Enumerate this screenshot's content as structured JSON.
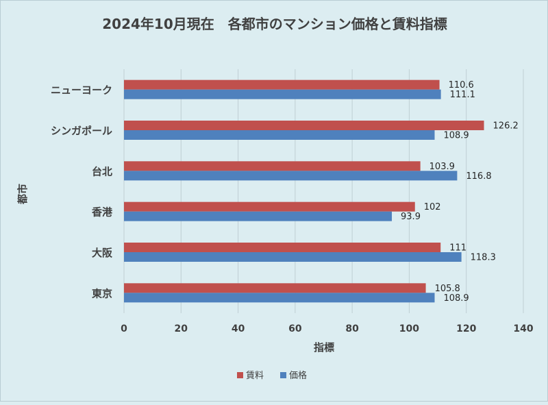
{
  "chart_data": {
    "type": "bar",
    "orientation": "horizontal",
    "title": "2024年10月現在　各都市のマンション価格と賃料指標",
    "xlabel": "指標",
    "ylabel": "都市",
    "xlim": [
      0,
      140
    ],
    "xticks": [
      0,
      20,
      40,
      60,
      80,
      100,
      120,
      140
    ],
    "grid": true,
    "legend_position": "bottom",
    "categories": [
      "ニューヨーク",
      "シンガポール",
      "台北",
      "香港",
      "大阪",
      "東京"
    ],
    "series": [
      {
        "name": "賃料",
        "color": "#c0504d",
        "values": [
          110.6,
          126.2,
          103.9,
          102,
          111,
          105.8
        ]
      },
      {
        "name": "価格",
        "color": "#4f81bd",
        "values": [
          111.1,
          108.9,
          116.8,
          93.9,
          118.3,
          108.9
        ]
      }
    ]
  }
}
